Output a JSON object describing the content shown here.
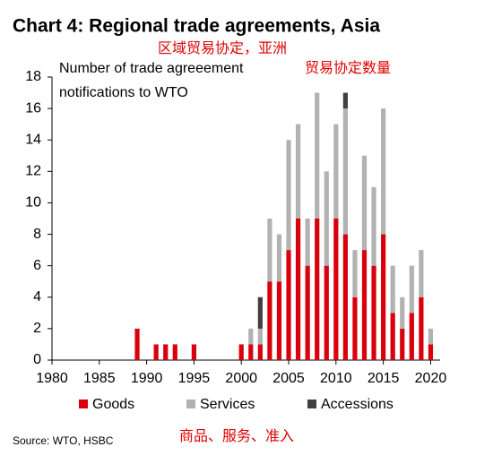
{
  "chart_data": {
    "type": "stacked_bar",
    "title": "Chart 4: Regional trade agreements, Asia",
    "subtitle": "区域贸易协定，亚洲",
    "y_label_lines": [
      "Number of trade agreeement",
      "notifications to WTO"
    ],
    "y_label_translation": "贸易协定数量",
    "legend_translation": "商品、服务、准入",
    "source": "Source: WTO, HSBC",
    "x": [
      1989,
      1991,
      1992,
      1993,
      1995,
      2000,
      2001,
      2002,
      2003,
      2004,
      2005,
      2006,
      2007,
      2008,
      2009,
      2010,
      2011,
      2012,
      2013,
      2014,
      2015,
      2016,
      2017,
      2018,
      2019,
      2020
    ],
    "series": [
      {
        "name": "Goods",
        "color": "#d9000d",
        "values": [
          2,
          1,
          1,
          1,
          1,
          1,
          1,
          1,
          5,
          5,
          7,
          9,
          6,
          9,
          6,
          9,
          8,
          4,
          7,
          6,
          8,
          3,
          2,
          3,
          4,
          1
        ]
      },
      {
        "name": "Services",
        "color": "#b2b2b2",
        "values": [
          0,
          0,
          0,
          0,
          0,
          0,
          1,
          1,
          4,
          3,
          7,
          6,
          3,
          8,
          6,
          6,
          8,
          3,
          6,
          5,
          8,
          3,
          2,
          3,
          3,
          1
        ]
      },
      {
        "name": "Accessions",
        "color": "#404040",
        "values": [
          0,
          0,
          0,
          0,
          0,
          0,
          0,
          2,
          0,
          0,
          0,
          0,
          0,
          0,
          0,
          0,
          1,
          0,
          0,
          0,
          0,
          0,
          0,
          0,
          0,
          0
        ]
      }
    ],
    "xlim": [
      1980,
      2021
    ],
    "xticks": [
      1980,
      1985,
      1990,
      1995,
      2000,
      2005,
      2010,
      2015,
      2020
    ],
    "ylim": [
      0,
      18
    ],
    "yticks": [
      0,
      2,
      4,
      6,
      8,
      10,
      12,
      14,
      16,
      18
    ]
  }
}
